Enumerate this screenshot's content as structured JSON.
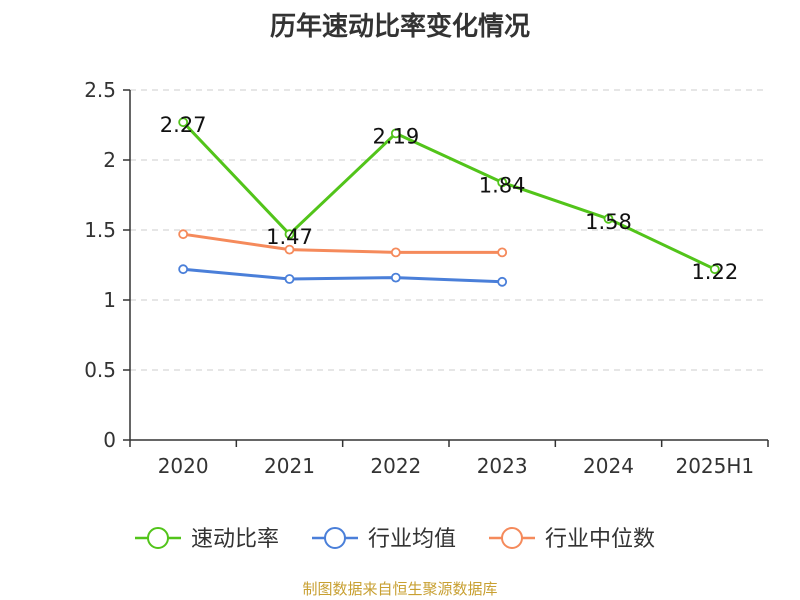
{
  "chart_data": {
    "type": "line",
    "title": "历年速动比率变化情况",
    "categories": [
      "2020",
      "2021",
      "2022",
      "2023",
      "2024",
      "2025H1"
    ],
    "ylim": [
      0,
      2.5
    ],
    "yticks": [
      "0",
      "0.5",
      "1",
      "1.5",
      "2",
      "2.5"
    ],
    "grid": true,
    "legend_position": "bottom",
    "series": [
      {
        "name": "速动比率",
        "color": "#52c41a",
        "values": [
          2.27,
          1.47,
          2.19,
          1.84,
          1.58,
          1.22
        ],
        "labels": [
          "2.27",
          "1.47",
          "2.19",
          "1.84",
          "1.58",
          "1.22"
        ]
      },
      {
        "name": "行业均值",
        "color": "#4a7fd9",
        "values": [
          1.22,
          1.15,
          1.16,
          1.13,
          null,
          null
        ]
      },
      {
        "name": "行业中位数",
        "color": "#f58a5b",
        "values": [
          1.47,
          1.36,
          1.34,
          1.34,
          null,
          null
        ]
      }
    ]
  },
  "source_note": "制图数据来自恒生聚源数据库"
}
